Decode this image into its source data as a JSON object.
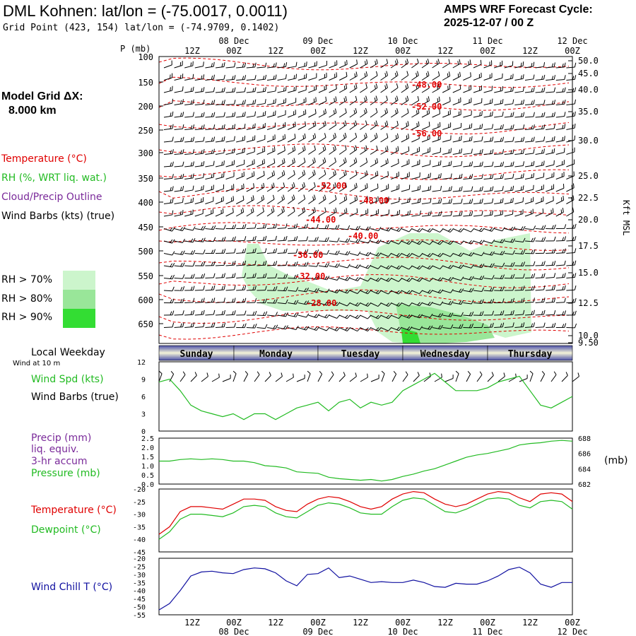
{
  "header": {
    "title": "DML Kohnen:  lat/lon = (-75.0017, 0.0011)",
    "subtitle": "Grid Point (423, 154) lat/lon = (-74.9709, 0.1402)",
    "cycle_line1": "AMPS WRF Forecast Cycle:",
    "cycle_line2": "2025-12-07 / 00  Z"
  },
  "model_grid": {
    "line1": "Model Grid ΔX:",
    "line2": "8.000 km"
  },
  "legend": {
    "temperature": "Temperature (°C)",
    "rh": "RH (%, WRT liq. wat.)",
    "cloud": "Cloud/Precip Outline",
    "wind": "Wind Barbs (kts) (true)",
    "rh70": "RH > 70%",
    "rh80": "RH > 80%",
    "rh90": "RH > 90%",
    "colors": {
      "temperature": "#e00000",
      "rh": "#22bb22",
      "cloud": "#7a2a9a",
      "rh70": "#ccf5cc",
      "rh80": "#99e699",
      "rh90": "#33dd33"
    }
  },
  "time_axis": {
    "top_date_labels": [
      "08 Dec",
      "09 Dec",
      "10 Dec",
      "11 Dec",
      "12 Dec"
    ],
    "hour_labels": [
      "12Z",
      "00Z",
      "12Z",
      "00Z",
      "12Z",
      "00Z",
      "12Z",
      "00Z",
      "12Z",
      "00Z"
    ],
    "bottom_date_labels": [
      "08 Dec",
      "09 Dec",
      "10 Dec",
      "11 Dec",
      "12 Dec"
    ]
  },
  "pressure_axis": {
    "label": "P (mb)",
    "ticks": [
      "100",
      "150",
      "200",
      "250",
      "300",
      "350",
      "400",
      "450",
      "500",
      "550",
      "600",
      "650"
    ],
    "kft_label": "Kft MSL",
    "kft_ticks": [
      "50.0",
      "45.0",
      "40.0",
      "35.0",
      "30.0",
      "25.0",
      "22.5",
      "20.0",
      "17.5",
      "15.0",
      "12.5",
      "10.0",
      "9.50"
    ]
  },
  "temp_contour_labels": [
    "-48.00",
    "-52.00",
    "-56.00",
    "-52.00",
    "-48.00",
    "-44.00",
    "-40.00",
    "-36.00",
    "-32.00",
    "-28.00"
  ],
  "weekday": {
    "label": "Local Weekday",
    "wind_note": "Wind at 10 m",
    "days": [
      "Sunday",
      "Monday",
      "Tuesday",
      "Wednesday",
      "Thursday"
    ]
  },
  "panels": {
    "wind": {
      "label1": "Wind Spd (kts)",
      "label2": "Wind Barbs (true)",
      "yticks": [
        "12",
        "9",
        "6",
        "3",
        "0"
      ]
    },
    "precip": {
      "label1": "Precip (mm)",
      "label2": "liq. equiv.",
      "label3": "3-hr accum",
      "label4": "Pressure (mb)",
      "yticks": [
        "2.5",
        "2.0",
        "1.5",
        "1.0",
        "0.5",
        "0.0"
      ],
      "rticks": [
        "688",
        "686",
        "684",
        "682"
      ],
      "runit": "(mb)"
    },
    "temp": {
      "label1": "Temperature (°C)",
      "label2": "Dewpoint (°C)",
      "yticks": [
        "-20",
        "-25",
        "-30",
        "-35",
        "-40",
        "-45"
      ]
    },
    "chill": {
      "label": "Wind Chill T (°C)",
      "yticks": [
        "-20",
        "-25",
        "-30",
        "-35",
        "-40",
        "-45",
        "-50",
        "-55"
      ]
    }
  },
  "chart_data": [
    {
      "type": "line",
      "name": "wind_speed",
      "x_hours": [
        0,
        3,
        6,
        9,
        12,
        15,
        18,
        21,
        24,
        27,
        30,
        33,
        36,
        39,
        42,
        45,
        48,
        51,
        54,
        57,
        60,
        63,
        66,
        69,
        72,
        75,
        78,
        81,
        84,
        87,
        90,
        93,
        96,
        99,
        102,
        105,
        108,
        111,
        114,
        117
      ],
      "series": [
        {
          "name": "Wind Spd (kts)",
          "color": "#22bb22",
          "values": [
            8.5,
            9,
            7,
            4.5,
            3.5,
            3,
            2.5,
            3,
            2,
            3,
            3,
            2,
            3,
            4,
            4.5,
            5,
            3.5,
            5,
            5.5,
            4,
            5,
            4.5,
            5,
            7,
            8,
            9,
            10,
            8.5,
            7,
            7,
            7,
            7.5,
            8.5,
            9,
            9.5,
            7,
            4.5,
            4,
            5,
            6
          ]
        }
      ],
      "ylim": [
        0,
        12
      ],
      "ylabel": "Wind Spd (kts)"
    },
    {
      "type": "line",
      "name": "pressure",
      "x_hours": [
        0,
        3,
        6,
        9,
        12,
        15,
        18,
        21,
        24,
        27,
        30,
        33,
        36,
        39,
        42,
        45,
        48,
        51,
        54,
        57,
        60,
        63,
        66,
        69,
        72,
        75,
        78,
        81,
        84,
        87,
        90,
        93,
        96,
        99,
        102,
        105,
        108,
        111,
        114,
        117
      ],
      "series": [
        {
          "name": "Pressure (mb)",
          "color": "#22bb22",
          "values": [
            685,
            685,
            685.2,
            685.3,
            685.2,
            685.3,
            685.2,
            685,
            685,
            684.8,
            684.4,
            684.3,
            684.1,
            683.6,
            683.5,
            683.4,
            682.9,
            682.7,
            682.6,
            682.5,
            682.6,
            682.4,
            682.6,
            683,
            683.3,
            683.7,
            684,
            684.5,
            685,
            685.5,
            685.8,
            686,
            686.3,
            686.6,
            687.1,
            687.3,
            687.4,
            687.6,
            687.7,
            687.6
          ]
        }
      ],
      "ylim": [
        682,
        688
      ],
      "ylabel": "Pressure (mb)"
    },
    {
      "type": "line",
      "name": "temperature_dewpoint",
      "x_hours": [
        0,
        3,
        6,
        9,
        12,
        15,
        18,
        21,
        24,
        27,
        30,
        33,
        36,
        39,
        42,
        45,
        48,
        51,
        54,
        57,
        60,
        63,
        66,
        69,
        72,
        75,
        78,
        81,
        84,
        87,
        90,
        93,
        96,
        99,
        102,
        105,
        108,
        111,
        114,
        117
      ],
      "series": [
        {
          "name": "Temperature (°C)",
          "color": "#e00000",
          "values": [
            -38,
            -35,
            -29,
            -27,
            -27,
            -27.5,
            -28,
            -26,
            -24,
            -24,
            -24.5,
            -27,
            -28.5,
            -29,
            -26,
            -24,
            -23,
            -23.5,
            -25,
            -27,
            -28,
            -27,
            -24,
            -22,
            -21,
            -21.5,
            -24,
            -26,
            -27,
            -26,
            -24,
            -22,
            -21,
            -21.5,
            -23.5,
            -25,
            -22,
            -21.5,
            -22,
            -25
          ]
        },
        {
          "name": "Dewpoint (°C)",
          "color": "#22bb22",
          "values": [
            -40,
            -37,
            -32,
            -30,
            -30,
            -30.5,
            -31,
            -29.5,
            -27,
            -26.5,
            -27,
            -29.5,
            -31,
            -31.5,
            -29,
            -26.5,
            -25.5,
            -26,
            -27.5,
            -29.5,
            -30,
            -30,
            -27,
            -24.5,
            -23.5,
            -24,
            -26.5,
            -29,
            -29.5,
            -28,
            -26,
            -24,
            -23.5,
            -24,
            -26.5,
            -27.5,
            -25,
            -24.5,
            -25,
            -28
          ]
        }
      ],
      "ylim": [
        -45,
        -20
      ],
      "ylabel": "Temperature (°C)"
    },
    {
      "type": "line",
      "name": "wind_chill",
      "x_hours": [
        0,
        3,
        6,
        9,
        12,
        15,
        18,
        21,
        24,
        27,
        30,
        33,
        36,
        39,
        42,
        45,
        48,
        51,
        54,
        57,
        60,
        63,
        66,
        69,
        72,
        75,
        78,
        81,
        84,
        87,
        90,
        93,
        96,
        99,
        102,
        105,
        108,
        111,
        114,
        117
      ],
      "series": [
        {
          "name": "Wind Chill T (°C)",
          "color": "#1010a0",
          "values": [
            -52,
            -48,
            -40,
            -31,
            -28.5,
            -28,
            -29,
            -29.5,
            -27,
            -26,
            -26.5,
            -29,
            -34,
            -37,
            -30,
            -29.5,
            -26,
            -32,
            -31,
            -33,
            -35,
            -34.5,
            -35,
            -35,
            -33.5,
            -35,
            -37.5,
            -38,
            -35.5,
            -36,
            -36,
            -34,
            -31,
            -27,
            -25.5,
            -29,
            -36,
            -38,
            -35,
            -35
          ]
        }
      ],
      "ylim": [
        -55,
        -20
      ],
      "ylabel": "Wind Chill T (°C)"
    }
  ]
}
